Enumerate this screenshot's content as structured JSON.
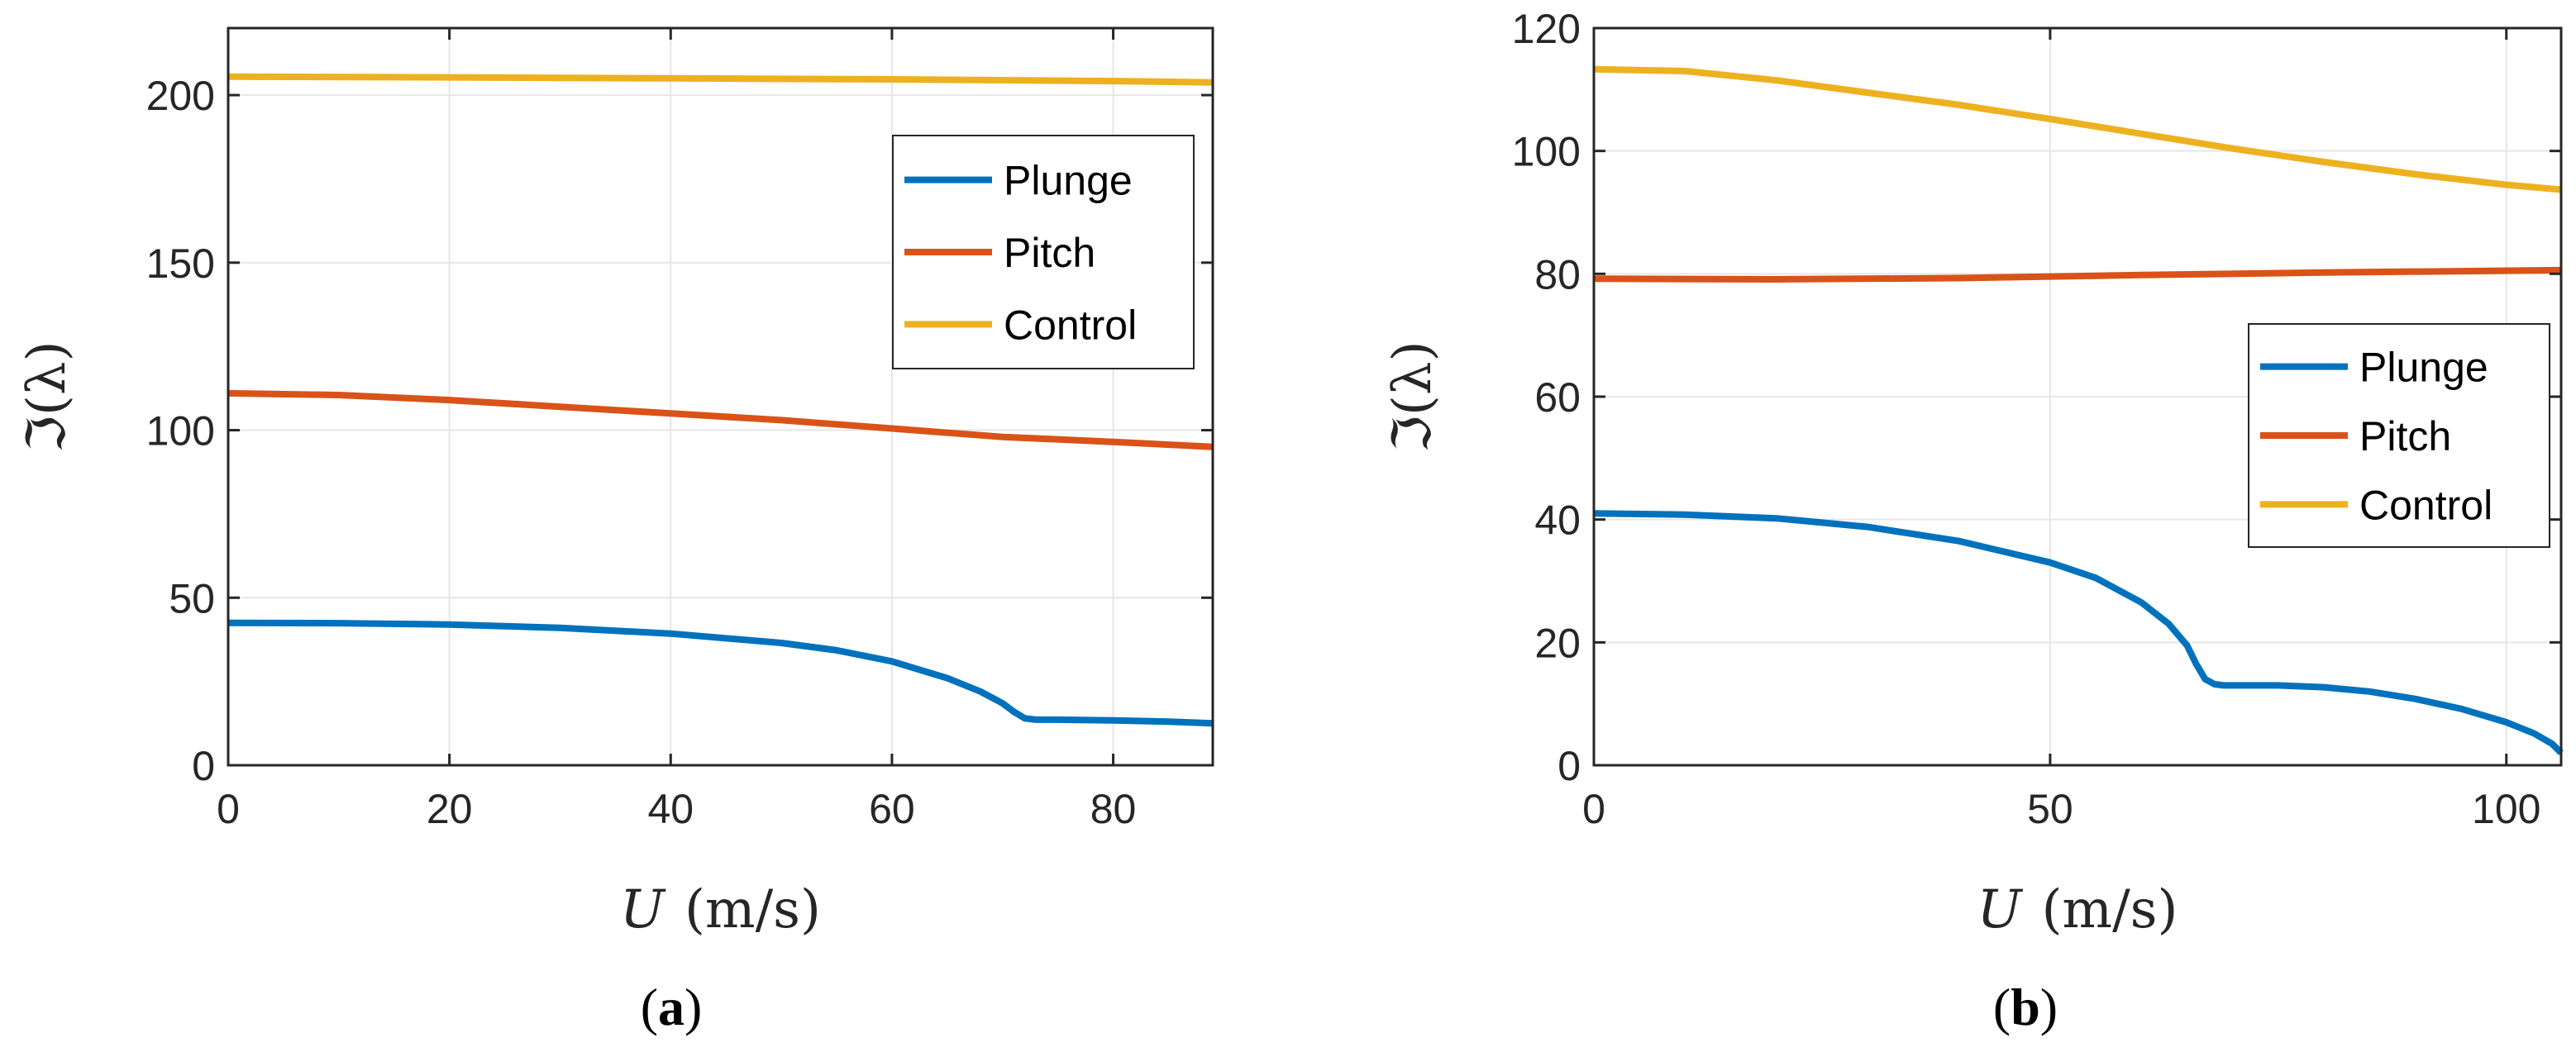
{
  "chart_data": [
    {
      "type": "line",
      "panel_label": "(a)",
      "panel_label_parts": {
        "open": "(",
        "letter": "a",
        "close": ")"
      },
      "xlabel": "U (m/s)",
      "xlabel_parts": {
        "var": "U",
        "unit": "(m/s)"
      },
      "ylabel": "ℑ(λ)",
      "xlim": [
        0,
        89
      ],
      "ylim": [
        0,
        220
      ],
      "xticks": [
        0,
        20,
        40,
        60,
        80
      ],
      "yticks": [
        0,
        50,
        100,
        150,
        200
      ],
      "grid": true,
      "legend_position": "top-right",
      "series": [
        {
          "name": "Plunge",
          "color": "#0072BD",
          "x": [
            0,
            10,
            20,
            30,
            40,
            50,
            55,
            60,
            65,
            68,
            70,
            71,
            72,
            73,
            75,
            80,
            85,
            89
          ],
          "y": [
            42.5,
            42.4,
            42.0,
            41.0,
            39.3,
            36.5,
            34.3,
            31.0,
            26.0,
            22.0,
            18.5,
            16.0,
            14.0,
            13.6,
            13.6,
            13.4,
            13.0,
            12.5
          ]
        },
        {
          "name": "Pitch",
          "color": "#D95319",
          "x": [
            0,
            10,
            20,
            30,
            40,
            50,
            60,
            70,
            80,
            89
          ],
          "y": [
            111,
            110.5,
            109,
            107,
            105,
            103,
            100.5,
            98,
            96.5,
            95
          ]
        },
        {
          "name": "Control",
          "color": "#EDB120",
          "x": [
            0,
            20,
            40,
            60,
            80,
            89
          ],
          "y": [
            205.5,
            205.3,
            205,
            204.7,
            204.2,
            203.8
          ]
        }
      ]
    },
    {
      "type": "line",
      "panel_label": "(b)",
      "panel_label_parts": {
        "open": "(",
        "letter": "b",
        "close": ")"
      },
      "xlabel": "U (m/s)",
      "xlabel_parts": {
        "var": "U",
        "unit": "(m/s)"
      },
      "ylabel": "ℑ(λ)",
      "xlim": [
        0,
        106
      ],
      "ylim": [
        0,
        120
      ],
      "xticks": [
        0,
        50,
        100
      ],
      "yticks": [
        0,
        20,
        40,
        60,
        80,
        100,
        120
      ],
      "grid": true,
      "legend_position": "right",
      "series": [
        {
          "name": "Plunge",
          "color": "#0072BD",
          "x": [
            0,
            10,
            20,
            30,
            40,
            50,
            55,
            60,
            63,
            65,
            66,
            67,
            68,
            69,
            70,
            75,
            80,
            85,
            90,
            95,
            100,
            103,
            105,
            106
          ],
          "y": [
            41.0,
            40.8,
            40.2,
            38.8,
            36.5,
            33.0,
            30.5,
            26.5,
            23.0,
            19.5,
            16.5,
            14.0,
            13.2,
            13.0,
            13.0,
            13.0,
            12.7,
            12.0,
            10.8,
            9.2,
            7.0,
            5.2,
            3.5,
            2.0
          ]
        },
        {
          "name": "Pitch",
          "color": "#D95319",
          "x": [
            0,
            20,
            40,
            60,
            80,
            106
          ],
          "y": [
            79.2,
            79.1,
            79.3,
            79.8,
            80.2,
            80.6
          ]
        },
        {
          "name": "Control",
          "color": "#EDB120",
          "x": [
            0,
            10,
            20,
            30,
            40,
            50,
            60,
            70,
            80,
            90,
            100,
            106
          ],
          "y": [
            113.3,
            113,
            111.5,
            109.5,
            107.5,
            105.2,
            102.8,
            100.4,
            98.2,
            96.2,
            94.5,
            93.7
          ]
        }
      ]
    }
  ]
}
